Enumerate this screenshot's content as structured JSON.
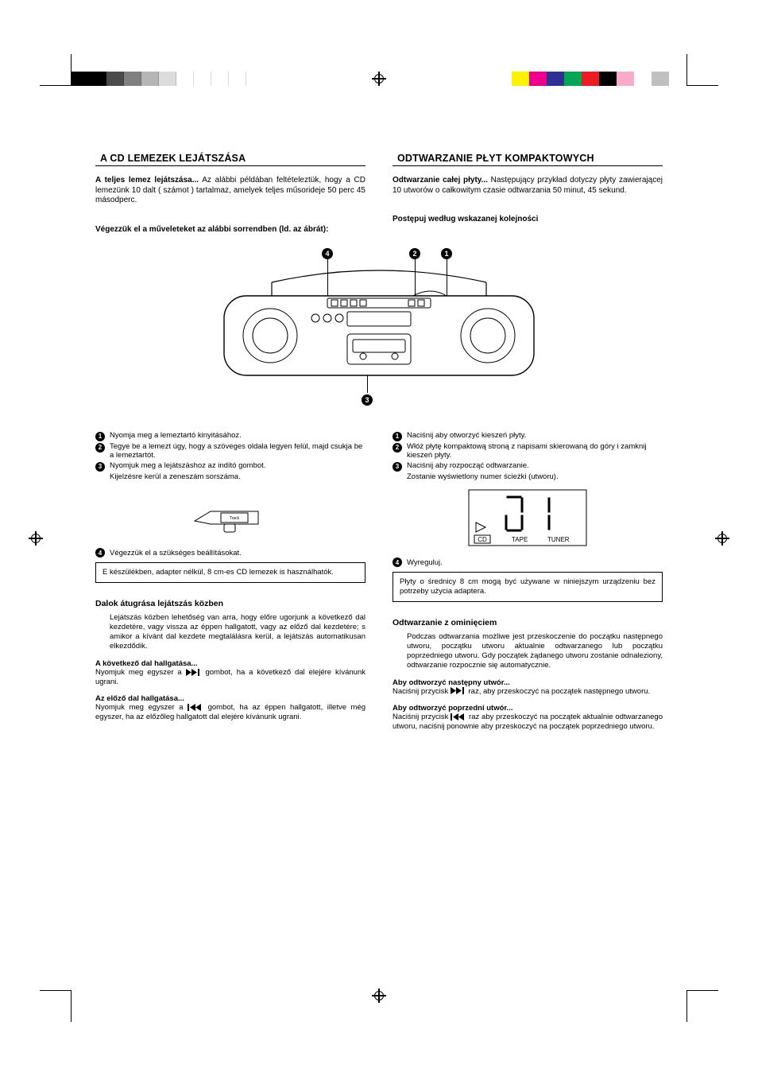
{
  "regbar": {
    "top_left_colors": [
      "#000000",
      "#000000",
      "#4b4b4b",
      "#808080",
      "#b5b5b5",
      "#dcdcdc",
      "#ffffff",
      "#ffffff",
      "#ffffff",
      "#ffffff"
    ],
    "top_right_colors": [
      "#fff200",
      "#ec008c",
      "#2e3192",
      "#00a651",
      "#ed1c24",
      "#000000",
      "#f7adc9",
      "#ffffff",
      "#c0c0c0",
      "#ffffff"
    ]
  },
  "left": {
    "title": "A CD LEMEZEK LEJÁTSZÁSA",
    "intro_lead": "A teljes lemez lejátszása...",
    "intro_rest": " Az alábbi példában feltételeztük, hogy a CD lemezünk 10 dalt ( számot ) tartalmaz, amelyek teljes műsorideje 50 perc 45 másodperc.",
    "subhead": "Végezzük el a műveleteket az alábbi sorrendben (ld. az ábrát):",
    "steps": [
      "Nyomja meg a lemeztartó kinyitásához.",
      "Tegye be a lemezt úgy, hogy a szöveges oldala legyen felül, majd csukja be a lemeztartót.",
      "Nyomjuk meg a lejátszáshoz az indító gombot."
    ],
    "step3_indent": "Kijelzésre kerül a zeneszám sorszáma.",
    "step4": "Végezzük el a szükséges beállításokat.",
    "boxnote": "E készülékben, adapter nélkül, 8 cm-es CD lemezek is használhatók.",
    "h_skip": "Dalok átugrása lejátszás közben",
    "p_skip": "Lejátszás közben lehetőség van arra, hogy előre ugorjunk a következő dal kezdetére, vagy vissza az éppen hallgatott, vagy az előző dal kezdetére; s amikor a kívánt dal kezdete megtalálásra kerül, a lejátszás automatikusan elkezdődik.",
    "h_next": "A következő dal hallgatása...",
    "p_next_a": "Nyomjuk meg egyszer a ",
    "p_next_b": " gombot, ha a következő dal elejére kívánunk ugrani.",
    "h_prev": "Az előző dal hallgatása...",
    "p_prev_a": "Nyomjuk meg egyszer a ",
    "p_prev_b": " gombot, ha az éppen hallgatott, illetve még egyszer, ha az előzőleg hallgatott dal elejére kívánunk ugrani."
  },
  "right": {
    "title": "ODTWARZANIE PŁYT KOMPAKTOWYCH",
    "intro_lead": "Odtwarzanie całej płyty...",
    "intro_rest": " Następujący przykład dotyczy płyty zawierającej 10 utworów o całkowitym czasie odtwarzania 50 minut, 45 sekund.",
    "subhead": "Postępuj według wskazanej kolejności",
    "steps": [
      "Naciśnij aby otworzyć kieszeń płyty.",
      "Włóż płytę kompaktową stroną z napisami skierowaną do góry i zamknij kieszeń płyty.",
      "Naciśnij aby rozpocząć  odtwarzanie."
    ],
    "step3_indent": "Zostanie wyświetlony numer ścieżki (utworu).",
    "step4": "Wyreguluj.",
    "boxnote": "Płyty o średnicy 8 cm mogą być używane w niniejszym urządzeniu bez potrzeby użycia adaptera.",
    "h_skip": "Odtwarzanie z ominięciem",
    "p_skip": "Podczas odtwarzania możliwe jest przeskoczenie do początku następnego utworu, początku utworu aktualnie odtwarzanego lub początku poprzedniego utworu. Gdy początek żądanego utworu zostanie odnaleziony, odtwarzanie rozpocznie się automatycznie.",
    "h_next": "Aby odtworzyć następny utwór...",
    "p_next_a": "Naciśnij przycisk ",
    "p_next_b": " raz, aby przeskoczyć na początek następnego utworu.",
    "h_prev": "Aby odtworzyć poprzedni utwór...",
    "p_prev_a": "Naciśnij przycisk ",
    "p_prev_b": " raz aby przeskoczyć na początek aktualnie odtwarzanego utworu, naciśnij ponownie aby przeskoczyć na początek poprzedniego utworu."
  },
  "display": {
    "labels": [
      "CD",
      "TAPE",
      "TUNER"
    ]
  }
}
